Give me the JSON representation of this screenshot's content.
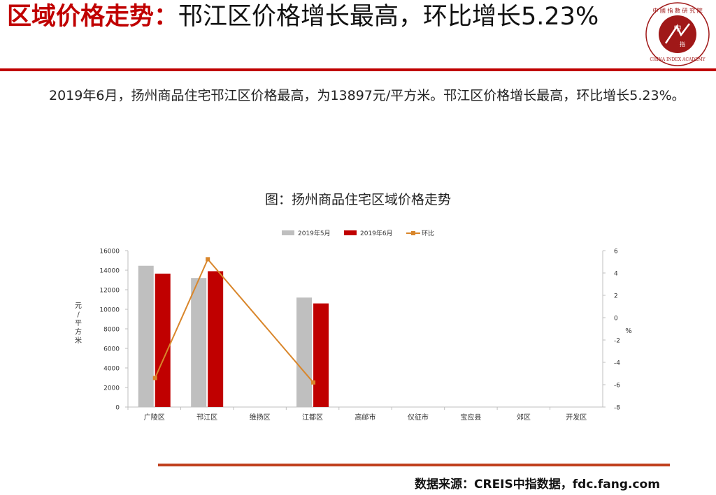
{
  "header": {
    "title_highlight": "区域价格走势：",
    "title_rest": "邗江区价格增长最高，环比增长5.23%"
  },
  "logo": {
    "top_text": "中 國 指 數 研 究 院",
    "center_top": "中",
    "center_bottom": "指",
    "bottom_text": "CHINA INDEX ACADEMY"
  },
  "body": {
    "paragraph": "2019年6月，扬州商品住宅邗江区价格最高，为13897元/平方米。邗江区价格增长最高，环比增长5.23%。"
  },
  "colors": {
    "accent": "#c00000",
    "series_may": "#bfbfbf",
    "series_june": "#c00000",
    "series_mom": "#d9862b",
    "rule_bottom": "#c0401e"
  },
  "chart_data": {
    "type": "bar",
    "title": "图：扬州商品住宅区域价格走势",
    "categories": [
      "广陵区",
      "邗江区",
      "维扬区",
      "江都区",
      "高邮市",
      "仪征市",
      "宝应县",
      "郊区",
      "开发区"
    ],
    "series": [
      {
        "name": "2019年5月",
        "type": "bar",
        "axis": "left",
        "values": [
          14450,
          13200,
          null,
          11200,
          null,
          null,
          null,
          null,
          null
        ]
      },
      {
        "name": "2019年6月",
        "type": "bar",
        "axis": "left",
        "values": [
          13650,
          13897,
          null,
          10600,
          null,
          null,
          null,
          null,
          null
        ]
      },
      {
        "name": "环比",
        "type": "line",
        "axis": "right",
        "values": [
          -5.4,
          5.23,
          null,
          -5.8,
          null,
          null,
          null,
          null,
          null
        ]
      }
    ],
    "ylabel": "元/平方米",
    "y2label": "%",
    "ylim": [
      0,
      16000
    ],
    "yticks": [
      0,
      2000,
      4000,
      6000,
      8000,
      10000,
      12000,
      14000,
      16000
    ],
    "y2lim": [
      -8,
      6
    ],
    "y2ticks": [
      -8,
      -6,
      -4,
      -2,
      0,
      2,
      4,
      6
    ],
    "legend": "top",
    "grid": false
  },
  "footer": {
    "source": "数据来源：CREIS中指数据，fdc.fang.com"
  }
}
